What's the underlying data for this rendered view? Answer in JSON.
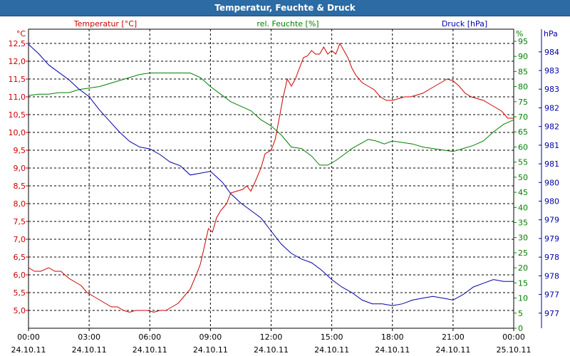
{
  "window": {
    "title": "Temperatur, Feuchte & Druck"
  },
  "colors": {
    "temperature": "#cc0000",
    "humidity": "#008000",
    "pressure": "#0000aa",
    "titlebar": "#2c6ba3"
  },
  "chart_data": {
    "type": "line",
    "title": "Temperatur, Feuchte & Druck",
    "grid": true,
    "axes": {
      "temperature": {
        "label": "Temperatur [°C]",
        "unit": "°C",
        "ylim": [
          4.5,
          12.9
        ],
        "ticks": [
          "5,0",
          "5,5",
          "6,0",
          "6,5",
          "7,0",
          "7,5",
          "8,0",
          "8,5",
          "9,0",
          "9,5",
          "10,0",
          "10,5",
          "11,0",
          "11,5",
          "12,0",
          "12,5"
        ]
      },
      "humidity": {
        "label": "rel. Feuchte [%]",
        "unit": "%",
        "ylim": [
          0,
          99
        ],
        "ticks": [
          "0",
          "5",
          "10",
          "15",
          "20",
          "25",
          "30",
          "35",
          "40",
          "45",
          "50",
          "55",
          "60",
          "65",
          "70",
          "75",
          "80",
          "85",
          "90",
          "95"
        ]
      },
      "pressure": {
        "label": "Druck [hPa]",
        "unit": "hPa",
        "ticks": [
          "977",
          "977",
          "978",
          "978",
          "979",
          "979",
          "980",
          "980",
          "981",
          "981",
          "982",
          "982",
          "983",
          "983",
          "984"
        ]
      }
    },
    "x": {
      "ticks": [
        {
          "time": "00:00",
          "date": "24.10.11"
        },
        {
          "time": "03:00",
          "date": "24.10.11"
        },
        {
          "time": "06:00",
          "date": "24.10.11"
        },
        {
          "time": "09:00",
          "date": "24.10.11"
        },
        {
          "time": "12:00",
          "date": "24.10.11"
        },
        {
          "time": "15:00",
          "date": "24.10.11"
        },
        {
          "time": "18:00",
          "date": "24.10.11"
        },
        {
          "time": "21:00",
          "date": "24.10.11"
        },
        {
          "time": "00:00",
          "date": "25.10.11"
        }
      ],
      "range_hours": [
        0,
        24
      ]
    },
    "series": [
      {
        "name": "Temperatur [°C]",
        "axis": "temperature",
        "points": [
          [
            0,
            6.2
          ],
          [
            0.3,
            6.1
          ],
          [
            0.6,
            6.1
          ],
          [
            1.0,
            6.2
          ],
          [
            1.3,
            6.1
          ],
          [
            1.6,
            6.1
          ],
          [
            2.0,
            5.9
          ],
          [
            2.3,
            5.8
          ],
          [
            2.6,
            5.7
          ],
          [
            2.9,
            5.5
          ],
          [
            3.2,
            5.4
          ],
          [
            3.5,
            5.3
          ],
          [
            3.8,
            5.2
          ],
          [
            4.1,
            5.1
          ],
          [
            4.4,
            5.1
          ],
          [
            4.7,
            5.0
          ],
          [
            5.0,
            4.95
          ],
          [
            5.3,
            5.0
          ],
          [
            5.6,
            5.0
          ],
          [
            5.9,
            5.0
          ],
          [
            6.2,
            4.95
          ],
          [
            6.5,
            5.0
          ],
          [
            6.8,
            5.0
          ],
          [
            7.1,
            5.1
          ],
          [
            7.4,
            5.2
          ],
          [
            7.7,
            5.4
          ],
          [
            8.0,
            5.6
          ],
          [
            8.3,
            6.0
          ],
          [
            8.5,
            6.3
          ],
          [
            8.7,
            6.8
          ],
          [
            8.9,
            7.3
          ],
          [
            9.1,
            7.2
          ],
          [
            9.3,
            7.6
          ],
          [
            9.5,
            7.8
          ],
          [
            9.8,
            8.0
          ],
          [
            10.0,
            8.3
          ],
          [
            10.3,
            8.35
          ],
          [
            10.6,
            8.4
          ],
          [
            10.8,
            8.5
          ],
          [
            11.0,
            8.35
          ],
          [
            11.2,
            8.6
          ],
          [
            11.5,
            9.0
          ],
          [
            11.7,
            9.4
          ],
          [
            12.0,
            9.5
          ],
          [
            12.2,
            9.8
          ],
          [
            12.4,
            10.4
          ],
          [
            12.6,
            11.0
          ],
          [
            12.8,
            11.5
          ],
          [
            13.0,
            11.3
          ],
          [
            13.2,
            11.5
          ],
          [
            13.4,
            11.8
          ],
          [
            13.6,
            12.1
          ],
          [
            13.8,
            12.15
          ],
          [
            14.0,
            12.3
          ],
          [
            14.2,
            12.2
          ],
          [
            14.4,
            12.2
          ],
          [
            14.6,
            12.4
          ],
          [
            14.8,
            12.2
          ],
          [
            15.0,
            12.3
          ],
          [
            15.2,
            12.2
          ],
          [
            15.4,
            12.5
          ],
          [
            15.6,
            12.3
          ],
          [
            15.8,
            12.1
          ],
          [
            16.0,
            11.8
          ],
          [
            16.2,
            11.6
          ],
          [
            16.5,
            11.4
          ],
          [
            16.8,
            11.3
          ],
          [
            17.1,
            11.2
          ],
          [
            17.4,
            11.0
          ],
          [
            17.7,
            10.9
          ],
          [
            18.0,
            10.9
          ],
          [
            18.3,
            10.95
          ],
          [
            18.6,
            11.0
          ],
          [
            18.9,
            11.0
          ],
          [
            19.2,
            11.05
          ],
          [
            19.5,
            11.1
          ],
          [
            19.8,
            11.2
          ],
          [
            20.1,
            11.3
          ],
          [
            20.4,
            11.4
          ],
          [
            20.7,
            11.5
          ],
          [
            21.0,
            11.45
          ],
          [
            21.3,
            11.3
          ],
          [
            21.6,
            11.1
          ],
          [
            21.9,
            11.0
          ],
          [
            22.2,
            10.95
          ],
          [
            22.5,
            10.9
          ],
          [
            22.8,
            10.8
          ],
          [
            23.1,
            10.7
          ],
          [
            23.4,
            10.6
          ],
          [
            23.7,
            10.4
          ],
          [
            24.0,
            10.4
          ]
        ]
      },
      {
        "name": "rel. Feuchte [%]",
        "axis": "humidity",
        "points": [
          [
            0,
            77
          ],
          [
            0.5,
            77.5
          ],
          [
            1.0,
            77.5
          ],
          [
            1.5,
            78
          ],
          [
            2.0,
            78
          ],
          [
            2.5,
            79
          ],
          [
            3.0,
            79.5
          ],
          [
            3.5,
            80
          ],
          [
            4.0,
            81
          ],
          [
            4.5,
            82
          ],
          [
            5.0,
            83
          ],
          [
            5.5,
            84
          ],
          [
            6.0,
            84.5
          ],
          [
            6.5,
            84.5
          ],
          [
            7.0,
            84.5
          ],
          [
            7.5,
            84.5
          ],
          [
            8.0,
            84.5
          ],
          [
            8.5,
            83
          ],
          [
            9.0,
            80
          ],
          [
            9.5,
            77.5
          ],
          [
            10.0,
            75
          ],
          [
            10.5,
            73.5
          ],
          [
            11.0,
            72
          ],
          [
            11.5,
            69
          ],
          [
            12.0,
            67
          ],
          [
            12.5,
            64
          ],
          [
            13.0,
            60
          ],
          [
            13.5,
            59.5
          ],
          [
            14.0,
            57
          ],
          [
            14.4,
            54
          ],
          [
            14.8,
            54
          ],
          [
            15.2,
            55.5
          ],
          [
            15.6,
            57.5
          ],
          [
            16.0,
            59.5
          ],
          [
            16.4,
            61
          ],
          [
            16.8,
            62.5
          ],
          [
            17.2,
            62
          ],
          [
            17.6,
            61
          ],
          [
            18.0,
            62
          ],
          [
            18.5,
            61.5
          ],
          [
            19.0,
            61
          ],
          [
            19.5,
            60
          ],
          [
            20.0,
            59.5
          ],
          [
            20.5,
            59
          ],
          [
            21.0,
            58.5
          ],
          [
            21.5,
            59.5
          ],
          [
            22.0,
            60.5
          ],
          [
            22.5,
            62
          ],
          [
            23.0,
            65
          ],
          [
            23.5,
            67.5
          ],
          [
            24.0,
            69
          ]
        ]
      },
      {
        "name": "Druck [hPa]",
        "axis": "pressure",
        "points": [
          [
            0,
            984.2
          ],
          [
            0.5,
            983.95
          ],
          [
            1.0,
            983.65
          ],
          [
            1.5,
            983.45
          ],
          [
            2.0,
            983.25
          ],
          [
            2.5,
            983.0
          ],
          [
            3.0,
            982.8
          ],
          [
            3.5,
            982.45
          ],
          [
            4.0,
            982.15
          ],
          [
            4.5,
            981.85
          ],
          [
            5.0,
            981.6
          ],
          [
            5.5,
            981.45
          ],
          [
            6.0,
            981.4
          ],
          [
            6.5,
            981.25
          ],
          [
            7.0,
            981.05
          ],
          [
            7.5,
            980.95
          ],
          [
            8.0,
            980.7
          ],
          [
            8.5,
            980.75
          ],
          [
            9.0,
            980.8
          ],
          [
            9.3,
            980.65
          ],
          [
            9.6,
            980.5
          ],
          [
            10.0,
            980.2
          ],
          [
            10.5,
            979.95
          ],
          [
            11.0,
            979.75
          ],
          [
            11.5,
            979.55
          ],
          [
            12.0,
            979.2
          ],
          [
            12.5,
            978.85
          ],
          [
            13.0,
            978.6
          ],
          [
            13.5,
            978.45
          ],
          [
            14.0,
            978.35
          ],
          [
            14.5,
            978.15
          ],
          [
            15.0,
            977.9
          ],
          [
            15.5,
            977.7
          ],
          [
            16.0,
            977.55
          ],
          [
            16.5,
            977.35
          ],
          [
            17.0,
            977.25
          ],
          [
            17.5,
            977.25
          ],
          [
            18.0,
            977.2
          ],
          [
            18.5,
            977.25
          ],
          [
            19.0,
            977.35
          ],
          [
            19.5,
            977.4
          ],
          [
            20.0,
            977.45
          ],
          [
            20.5,
            977.4
          ],
          [
            21.0,
            977.35
          ],
          [
            21.5,
            977.5
          ],
          [
            22.0,
            977.7
          ],
          [
            22.5,
            977.8
          ],
          [
            23.0,
            977.9
          ],
          [
            23.5,
            977.85
          ],
          [
            24.0,
            977.85
          ]
        ]
      }
    ]
  }
}
